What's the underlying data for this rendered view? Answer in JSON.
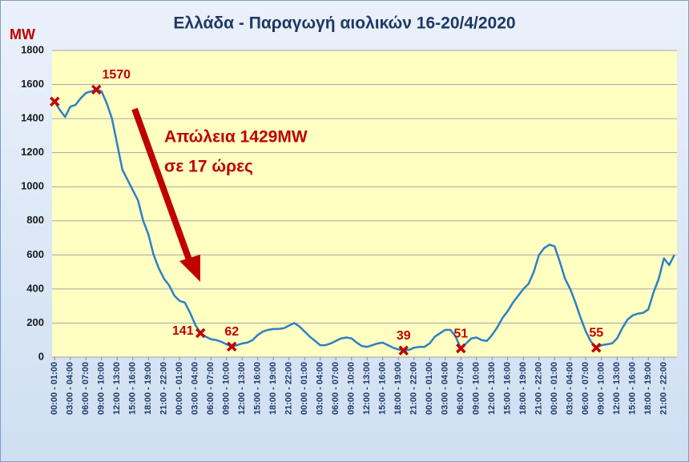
{
  "chart_data": {
    "type": "line",
    "title": "Ελλάδα - Παραγωγή αιολικών 16-20/4/2020",
    "y_unit": "MW",
    "annotation": [
      "Απώλεια 1429MW",
      "σε 17 ώρες"
    ],
    "ylim": [
      0,
      1800
    ],
    "yticks": [
      0,
      200,
      400,
      600,
      800,
      1000,
      1200,
      1400,
      1600,
      1800
    ],
    "grid": true,
    "categories": [
      "00:00 - 01:00",
      null,
      null,
      "03:00 - 04:00",
      null,
      null,
      "06:00 - 07:00",
      null,
      null,
      "09:00 - 10:00",
      null,
      null,
      "12:00 - 13:00",
      null,
      null,
      "15:00 - 16:00",
      null,
      null,
      "18:00 - 19:00",
      null,
      null,
      "21:00 - 22:00",
      null,
      null,
      "00:00 - 01:00",
      null,
      null,
      "03:00 - 04:00",
      null,
      null,
      "06:00 - 07:00",
      null,
      null,
      "09:00 - 10:00",
      null,
      null,
      "12:00 - 13:00",
      null,
      null,
      "15:00 - 16:00",
      null,
      null,
      "18:00 - 19:00",
      null,
      null,
      "21:00 - 22:00",
      null,
      null,
      "00:00 - 01:00",
      null,
      null,
      "03:00 - 04:00",
      null,
      null,
      "06:00 - 07:00",
      null,
      null,
      "09:00 - 10:00",
      null,
      null,
      "12:00 - 13:00",
      null,
      null,
      "15:00 - 16:00",
      null,
      null,
      "18:00 - 19:00",
      null,
      null,
      "21:00 - 22:00",
      null,
      null,
      "00:00 - 01:00",
      null,
      null,
      "03:00 - 04:00",
      null,
      null,
      "06:00 - 07:00",
      null,
      null,
      "09:00 - 10:00",
      null,
      null,
      "12:00 - 13:00",
      null,
      null,
      "15:00 - 16:00",
      null,
      null,
      "18:00 - 19:00",
      null,
      null,
      "21:00 - 22:00",
      null,
      null,
      "00:00 - 01:00",
      null,
      null,
      "03:00 - 04:00",
      null,
      null,
      "06:00 - 07:00",
      null,
      null,
      "09:00 - 10:00",
      null,
      null,
      "12:00 - 13:00",
      null,
      null,
      "15:00 - 16:00",
      null,
      null,
      "18:00 - 19:00",
      null,
      null,
      "21:00 - 22:00",
      null,
      null
    ],
    "series": [
      {
        "color": "#2e7fc6",
        "style": "line",
        "values": [
          1500,
          1450,
          1410,
          1470,
          1480,
          1520,
          1550,
          1560,
          1570,
          1560,
          1490,
          1400,
          1250,
          1100,
          1040,
          980,
          920,
          800,
          720,
          600,
          520,
          460,
          420,
          360,
          330,
          320,
          260,
          190,
          141,
          120,
          105,
          100,
          90,
          75,
          62,
          70,
          80,
          85,
          100,
          130,
          150,
          160,
          165,
          165,
          170,
          185,
          200,
          180,
          150,
          120,
          95,
          70,
          70,
          80,
          95,
          110,
          115,
          110,
          85,
          65,
          60,
          70,
          80,
          85,
          70,
          55,
          45,
          39,
          42,
          55,
          60,
          60,
          80,
          120,
          140,
          160,
          160,
          120,
          51,
          80,
          110,
          115,
          100,
          95,
          130,
          175,
          230,
          270,
          320,
          360,
          400,
          430,
          500,
          600,
          640,
          660,
          650,
          560,
          460,
          400,
          320,
          230,
          150,
          90,
          55,
          70,
          75,
          80,
          110,
          170,
          220,
          245,
          255,
          260,
          280,
          380,
          460,
          580,
          540,
          600
        ]
      },
      {
        "color": "#c00000",
        "style": "marker",
        "values": [
          1500,
          null,
          null,
          null,
          null,
          null,
          null,
          null,
          null,
          null,
          null,
          null,
          null,
          null,
          null,
          null,
          null,
          null,
          null,
          null,
          null,
          null,
          null,
          null,
          null,
          null,
          null,
          null,
          null,
          null,
          null,
          null,
          null,
          null,
          null,
          null,
          null,
          null,
          null,
          null,
          null,
          null,
          null,
          null,
          null,
          null,
          null,
          null,
          null,
          null,
          null,
          null,
          null,
          null,
          null,
          null,
          null,
          null,
          null,
          null,
          null,
          null,
          null,
          null,
          null,
          null,
          null,
          null,
          null,
          null,
          null,
          null,
          null,
          null,
          null,
          null,
          null,
          null,
          null,
          null,
          null,
          null,
          null,
          null,
          null,
          null,
          null,
          null,
          null,
          null,
          null,
          null,
          null,
          null,
          null,
          null,
          null,
          null,
          null,
          null,
          null,
          null,
          null,
          null,
          null,
          null,
          null,
          null,
          null,
          null,
          null,
          null,
          null,
          null,
          null,
          null,
          null,
          null,
          null,
          null
        ]
      },
      {
        "color": "#c00000",
        "style": "marker",
        "labels": true,
        "values": [
          null,
          null,
          null,
          null,
          null,
          null,
          null,
          null,
          1570,
          null,
          null,
          null,
          null,
          null,
          null,
          null,
          null,
          null,
          null,
          null,
          null,
          null,
          null,
          null,
          null,
          null,
          null,
          null,
          141,
          null,
          null,
          null,
          null,
          null,
          62,
          null,
          null,
          null,
          null,
          null,
          null,
          null,
          null,
          null,
          null,
          null,
          null,
          null,
          null,
          null,
          null,
          null,
          null,
          null,
          null,
          null,
          null,
          null,
          null,
          null,
          null,
          null,
          null,
          null,
          null,
          null,
          null,
          39,
          null,
          null,
          null,
          null,
          null,
          null,
          null,
          null,
          null,
          null,
          51,
          null,
          null,
          null,
          null,
          null,
          null,
          null,
          null,
          null,
          null,
          null,
          null,
          null,
          null,
          null,
          null,
          null,
          null,
          null,
          null,
          null,
          null,
          null,
          null,
          null,
          55,
          null,
          null,
          null,
          null,
          null,
          null,
          null,
          null,
          null,
          null,
          null,
          null,
          null,
          null,
          null
        ]
      }
    ]
  }
}
